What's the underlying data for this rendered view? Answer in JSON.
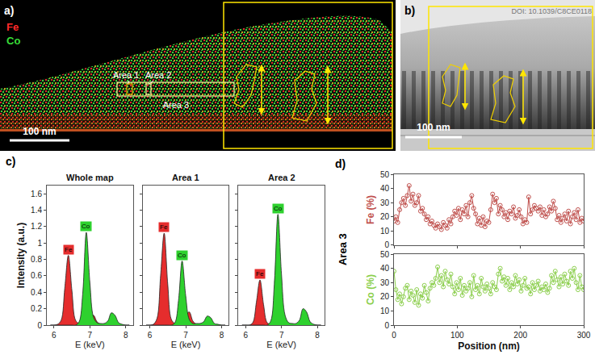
{
  "panels": {
    "a": {
      "label": "a)",
      "element_keys": [
        {
          "text": "Fe",
          "color": "#ff2a2a"
        },
        {
          "text": "Co",
          "color": "#38dd38"
        }
      ],
      "areas": [
        "Area 1",
        "Area 2",
        "Area 3"
      ],
      "scale_bar": "100 nm"
    },
    "b": {
      "label": "b)",
      "scale_bar": "100 nm",
      "watermark": "DOI: 10.1039/C8CE0118"
    },
    "c": {
      "label": "c)"
    },
    "d": {
      "label": "d)",
      "side_title": "Area 3"
    }
  },
  "chart_data": [
    {
      "type": "area",
      "title": "Whole map",
      "xlabel": "E (keV)",
      "ylabel": "Intensity (a.u.)",
      "x": [
        5.9,
        6.0,
        6.1,
        6.2,
        6.3,
        6.4,
        6.5,
        6.6,
        6.7,
        6.8,
        6.9,
        7.0,
        7.1,
        7.2,
        7.3,
        7.4,
        7.5,
        7.6,
        7.7,
        7.8,
        7.9,
        8.0,
        8.1
      ],
      "series": [
        {
          "name": "Fe",
          "color": "#e52d2d",
          "values": [
            0,
            0,
            0.01,
            0.06,
            0.45,
            0.85,
            0.42,
            0.06,
            0.02,
            0.02,
            0.04,
            0.09,
            0.12,
            0.04,
            0.01,
            0,
            0,
            0,
            0,
            0,
            0,
            0,
            0
          ]
        },
        {
          "name": "Co",
          "color": "#2ed12e",
          "values": [
            0,
            0,
            0,
            0,
            0,
            0,
            0,
            0,
            0.04,
            0.38,
            1.13,
            0.52,
            0.1,
            0.03,
            0.02,
            0.02,
            0.05,
            0.15,
            0.12,
            0.03,
            0.01,
            0,
            0
          ]
        }
      ],
      "xlim": [
        5.8,
        8.2
      ],
      "xticks": [
        6,
        7,
        8
      ],
      "ylim": [
        0,
        1.7
      ],
      "yticks": [
        0,
        0.2,
        0.4,
        0.6,
        0.8,
        1,
        1.2,
        1.4,
        1.6
      ],
      "grid": false
    },
    {
      "type": "area",
      "title": "Area 1",
      "xlabel": "E (keV)",
      "x": [
        5.9,
        6.0,
        6.1,
        6.2,
        6.3,
        6.4,
        6.5,
        6.6,
        6.7,
        6.8,
        6.9,
        7.0,
        7.1,
        7.2,
        7.3,
        7.4,
        7.5,
        7.6,
        7.7,
        7.8,
        7.9,
        8.0,
        8.1
      ],
      "series": [
        {
          "name": "Fe",
          "color": "#e52d2d",
          "values": [
            0,
            0,
            0.01,
            0.08,
            0.6,
            1.12,
            0.5,
            0.07,
            0.02,
            0.02,
            0.05,
            0.12,
            0.16,
            0.05,
            0.01,
            0,
            0,
            0,
            0,
            0,
            0,
            0,
            0
          ]
        },
        {
          "name": "Co",
          "color": "#2ed12e",
          "values": [
            0,
            0,
            0,
            0,
            0,
            0,
            0,
            0,
            0.03,
            0.3,
            0.78,
            0.36,
            0.07,
            0.02,
            0.02,
            0.02,
            0.04,
            0.11,
            0.09,
            0.02,
            0.01,
            0,
            0
          ]
        }
      ],
      "xlim": [
        5.8,
        8.2
      ],
      "xticks": [
        6,
        7,
        8
      ],
      "ylim": [
        0,
        1.7
      ],
      "yticks": [
        0,
        0.2,
        0.4,
        0.6,
        0.8,
        1,
        1.2,
        1.4,
        1.6
      ],
      "grid": false,
      "tick_labels": "x"
    },
    {
      "type": "area",
      "title": "Area 2",
      "xlabel": "E (keV)",
      "x": [
        5.9,
        6.0,
        6.1,
        6.2,
        6.3,
        6.4,
        6.5,
        6.6,
        6.7,
        6.8,
        6.9,
        7.0,
        7.1,
        7.2,
        7.3,
        7.4,
        7.5,
        7.6,
        7.7,
        7.8,
        7.9,
        8.0,
        8.1
      ],
      "series": [
        {
          "name": "Fe",
          "color": "#e52d2d",
          "values": [
            0,
            0,
            0,
            0.03,
            0.28,
            0.55,
            0.25,
            0.03,
            0.01,
            0.01,
            0.02,
            0.05,
            0.07,
            0.02,
            0.01,
            0,
            0,
            0,
            0,
            0,
            0,
            0,
            0
          ]
        },
        {
          "name": "Co",
          "color": "#2ed12e",
          "values": [
            0,
            0,
            0,
            0,
            0,
            0,
            0,
            0,
            0.05,
            0.5,
            1.35,
            0.62,
            0.12,
            0.03,
            0.02,
            0.02,
            0.06,
            0.2,
            0.16,
            0.04,
            0.01,
            0,
            0
          ]
        }
      ],
      "xlim": [
        5.8,
        8.2
      ],
      "xticks": [
        6,
        7,
        8
      ],
      "ylim": [
        0,
        1.7
      ],
      "yticks": [
        0,
        0.2,
        0.4,
        0.6,
        0.8,
        1,
        1.2,
        1.4,
        1.6
      ],
      "grid": false,
      "tick_labels": "x"
    },
    {
      "type": "scatter",
      "marker": "open_circle",
      "line_style": "solid",
      "xlabel": "Position (nm)",
      "grid": false,
      "x": [
        0,
        3,
        6,
        9,
        12,
        15,
        18,
        21,
        24,
        27,
        30,
        33,
        36,
        39,
        42,
        45,
        48,
        51,
        54,
        57,
        60,
        63,
        66,
        69,
        72,
        75,
        78,
        81,
        84,
        87,
        90,
        93,
        96,
        99,
        102,
        105,
        108,
        111,
        114,
        117,
        120,
        123,
        126,
        129,
        132,
        135,
        138,
        141,
        144,
        147,
        150,
        153,
        156,
        159,
        162,
        165,
        168,
        171,
        174,
        177,
        180,
        183,
        186,
        189,
        192,
        195,
        198,
        201,
        204,
        207,
        210,
        213,
        216,
        219,
        222,
        225,
        228,
        231,
        234,
        237,
        240,
        243,
        246,
        249,
        252,
        255,
        258,
        261,
        264,
        267,
        270,
        273,
        276,
        279,
        282,
        285,
        288,
        291,
        294,
        297,
        300
      ],
      "xlim": [
        0,
        300
      ],
      "xticks": [
        0,
        100,
        200,
        300
      ],
      "ylim": [
        0,
        50
      ],
      "yticks": [
        0,
        10,
        20,
        30,
        40,
        50
      ],
      "series": [
        {
          "ylabel": "Fe (%)",
          "color": "#c0504d",
          "values": [
            17,
            20,
            16,
            25,
            30,
            33,
            28,
            35,
            42,
            31,
            36,
            28,
            30,
            35,
            24,
            26,
            22,
            18,
            20,
            15,
            17,
            14,
            12,
            15,
            13,
            11,
            16,
            14,
            12,
            18,
            15,
            20,
            24,
            21,
            26,
            18,
            25,
            22,
            28,
            20,
            30,
            35,
            26,
            22,
            15,
            19,
            14,
            20,
            13,
            17,
            16,
            25,
            36,
            30,
            33,
            22,
            28,
            25,
            20,
            23,
            18,
            24,
            22,
            27,
            19,
            21,
            25,
            20,
            15,
            18,
            16,
            34,
            22,
            25,
            28,
            26,
            24,
            27,
            21,
            25,
            20,
            22,
            27,
            24,
            31,
            26,
            18,
            21,
            16,
            19,
            22,
            17,
            24,
            15,
            20,
            23,
            18,
            25,
            16,
            19,
            17
          ]
        },
        {
          "ylabel": "Co (%)",
          "color": "#8ccf4d",
          "values": [
            38,
            25,
            18,
            22,
            15,
            20,
            26,
            28,
            18,
            24,
            21,
            16,
            25,
            14,
            22,
            19,
            28,
            23,
            17,
            26,
            30,
            28,
            33,
            41,
            30,
            35,
            27,
            38,
            32,
            29,
            36,
            27,
            22,
            30,
            25,
            33,
            21,
            28,
            24,
            26,
            30,
            20,
            35,
            25,
            28,
            22,
            33,
            27,
            24,
            29,
            26,
            22,
            30,
            27,
            25,
            36,
            40,
            31,
            34,
            28,
            33,
            25,
            30,
            27,
            35,
            29,
            32,
            24,
            28,
            33,
            26,
            27,
            22,
            30,
            25,
            28,
            31,
            24,
            27,
            25,
            29,
            23,
            26,
            35,
            30,
            38,
            32,
            27,
            34,
            29,
            36,
            31,
            28,
            38,
            33,
            40,
            30,
            25,
            35,
            27,
            25
          ]
        }
      ]
    }
  ]
}
